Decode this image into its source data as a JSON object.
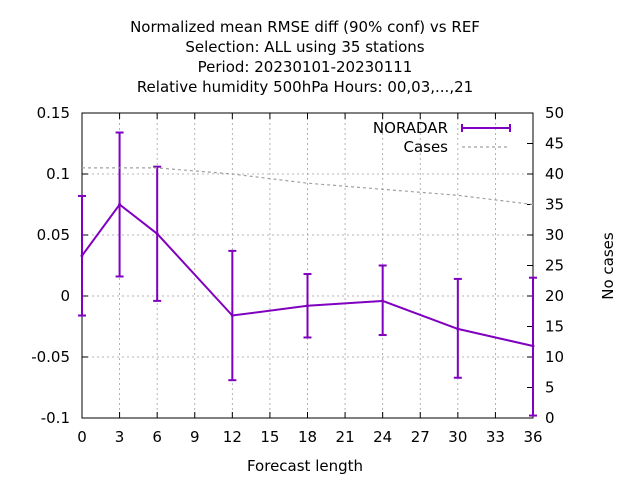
{
  "chart_data": {
    "type": "line",
    "title_lines": [
      "Normalized mean RMSE diff (90% conf) vs REF",
      "Selection: ALL using    35 stations",
      "Period: 20230101-20230111",
      "Relative humidity 500hPa   Hours:  00,03,...,21"
    ],
    "xlabel": "Forecast length",
    "ylabel_right": "No cases",
    "x_ticks": [
      "0",
      "3",
      "6",
      "9",
      "12",
      "15",
      "18",
      "21",
      "24",
      "27",
      "30",
      "33",
      "36"
    ],
    "y_ticks": [
      "-0.1",
      "-0.05",
      "0",
      "0.05",
      "0.1",
      "0.15"
    ],
    "y2_ticks": [
      "0",
      "5",
      "10",
      "15",
      "20",
      "25",
      "30",
      "35",
      "40",
      "45",
      "50"
    ],
    "xlim": [
      0,
      36
    ],
    "ylim": [
      -0.1,
      0.15
    ],
    "y2lim": [
      0,
      50
    ],
    "grid": true,
    "legend_position": "top-right",
    "series": [
      {
        "name": "NORADAR",
        "color": "#8000c0",
        "axis": "left",
        "style": "line-errorbars",
        "x": [
          0,
          3,
          6,
          12,
          18,
          24,
          30,
          36
        ],
        "y": [
          0.033,
          0.075,
          0.051,
          -0.016,
          -0.008,
          -0.004,
          -0.027,
          -0.041
        ],
        "err_low": [
          -0.016,
          0.016,
          -0.004,
          -0.069,
          -0.034,
          -0.032,
          -0.067,
          -0.098
        ],
        "err_high": [
          0.082,
          0.134,
          0.106,
          0.037,
          0.018,
          0.025,
          0.014,
          0.015
        ]
      },
      {
        "name": "Cases",
        "color": "#a0a0a0",
        "axis": "right",
        "style": "dashed",
        "x": [
          0,
          6,
          12,
          18,
          24,
          30,
          36
        ],
        "y": [
          41,
          41,
          40,
          38.5,
          37.5,
          36.5,
          35
        ]
      }
    ]
  }
}
